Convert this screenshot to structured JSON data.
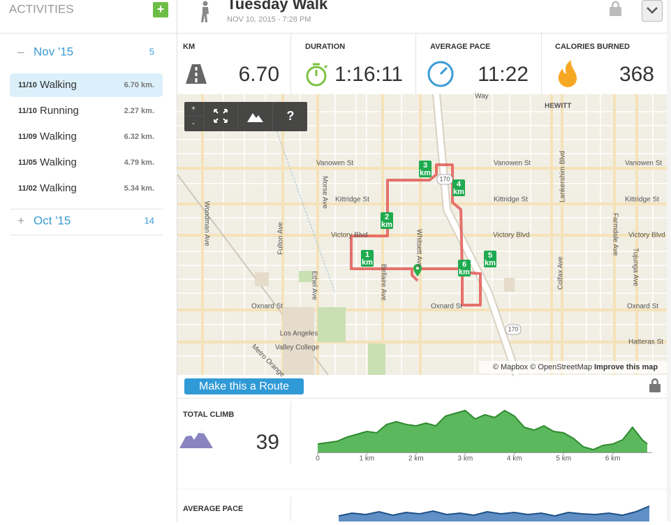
{
  "sidebar": {
    "title": "ACTIVITIES",
    "add_button": "+",
    "months": [
      {
        "toggle": "–",
        "label": "Nov '15",
        "count": "5",
        "activities": [
          {
            "date": "11/10",
            "type": "Walking",
            "distance": "6.70 km."
          },
          {
            "date": "11/10",
            "type": "Running",
            "distance": "2.27 km."
          },
          {
            "date": "11/09",
            "type": "Walking",
            "distance": "6.32 km."
          },
          {
            "date": "11/05",
            "type": "Walking",
            "distance": "4.79 km."
          },
          {
            "date": "11/02",
            "type": "Walking",
            "distance": "5.34 km."
          }
        ]
      },
      {
        "toggle": "+",
        "label": "Oct '15",
        "count": "14"
      }
    ]
  },
  "header": {
    "title": "Tuesday Walk",
    "subtitle": "NOV 10, 2015 - 7:28 PM"
  },
  "stats": [
    {
      "label": "KM",
      "value": "6.70"
    },
    {
      "label": "DURATION",
      "value": "1:16:11"
    },
    {
      "label": "AVERAGE PACE",
      "value": "11:22"
    },
    {
      "label": "CALORIES BURNED",
      "value": "368"
    }
  ],
  "map": {
    "controls": [
      "+",
      "-",
      "?"
    ],
    "streets": [
      "HEWITT",
      "Vanowen St",
      "Kittridge St",
      "Victory Blvd",
      "Oxnard St",
      "Hatteras St",
      "Morse Ave",
      "Fulton Ave",
      "Woodman Ave",
      "Ethel Ave",
      "Bellaire Ave",
      "Whitsett Ave",
      "Lankershim Blvd",
      "Colfax Ave",
      "Tujunga Ave",
      "Farmdale Ave",
      "Metro Orange",
      "Los Angeles",
      "Valley College",
      "170",
      "Way"
    ],
    "markers": [
      "1",
      "2",
      "3",
      "4",
      "5",
      "6"
    ],
    "marker_unit": "km",
    "attribution": "© Mapbox © OpenStreetMap",
    "improve_link": "Improve this map"
  },
  "route_button": "Make this a Route",
  "climb": {
    "label": "TOTAL CLIMB",
    "value": "39",
    "profile": {
      "x": [
        0,
        0.2,
        0.4,
        0.6,
        0.8,
        1.0,
        1.2,
        1.4,
        1.6,
        1.8,
        2.0,
        2.2,
        2.4,
        2.6,
        2.8,
        3.0,
        3.2,
        3.4,
        3.6,
        3.8,
        4.0,
        4.2,
        4.4,
        4.6,
        4.8,
        5.0,
        5.2,
        5.4,
        5.6,
        5.8,
        6.0,
        6.2,
        6.4,
        6.6,
        6.7
      ],
      "values": [
        12,
        14,
        16,
        22,
        26,
        30,
        28,
        40,
        44,
        40,
        38,
        42,
        38,
        52,
        56,
        60,
        48,
        54,
        50,
        60,
        52,
        36,
        32,
        38,
        30,
        28,
        20,
        8,
        4,
        10,
        12,
        18,
        36,
        18,
        12
      ],
      "xlim": [
        0,
        6.8
      ],
      "ylim": [
        0,
        70
      ],
      "xticks": [
        0,
        {
          "value": 1,
          "label": "1 km"
        },
        {
          "value": 2,
          "label": "2 km"
        },
        {
          "value": 3,
          "label": "3 km"
        },
        {
          "value": 4,
          "label": "4 km"
        },
        {
          "value": 5,
          "label": "5 km"
        },
        {
          "value": 6,
          "label": "6 km"
        }
      ]
    }
  },
  "pace": {
    "label": "AVERAGE PACE",
    "profile": {
      "values": [
        8,
        12,
        10,
        14,
        9,
        13,
        11,
        15,
        10,
        12,
        9,
        14,
        11,
        13,
        10,
        12,
        8,
        13,
        11,
        10,
        12,
        9,
        14,
        22
      ],
      "ylim": [
        0,
        30
      ]
    }
  }
}
